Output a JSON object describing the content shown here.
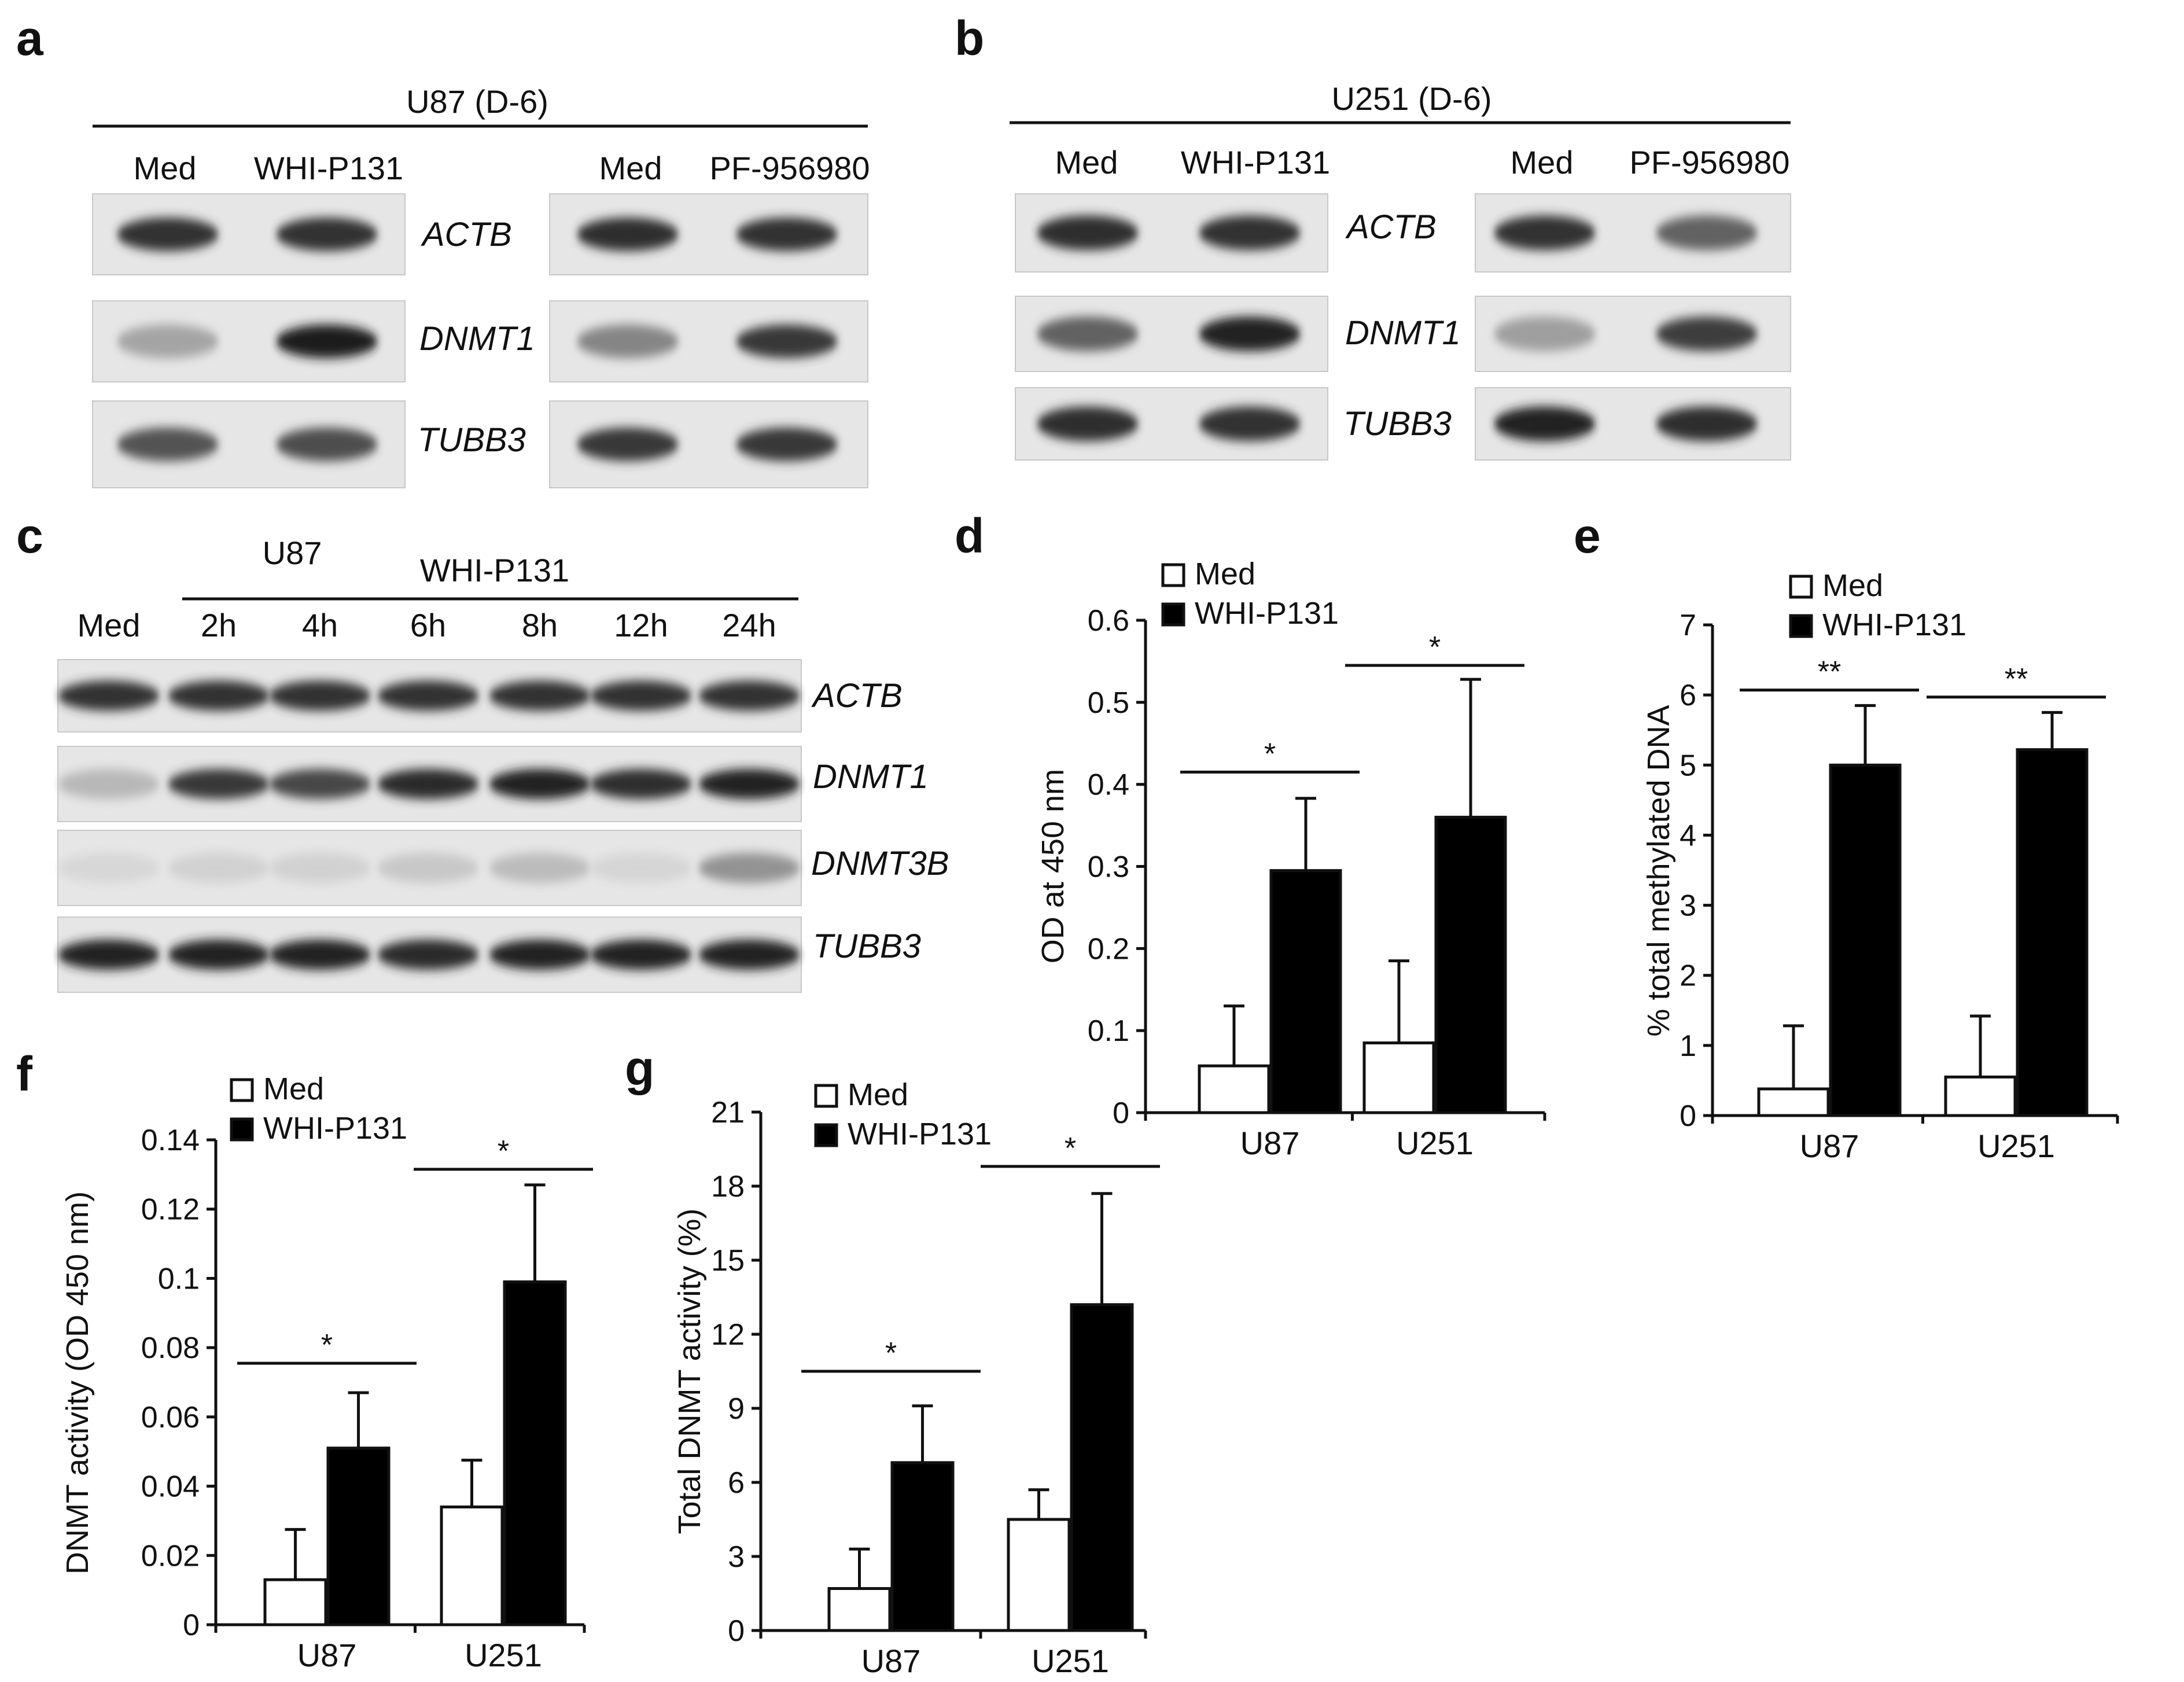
{
  "panel_a": {
    "letter": "a",
    "header": "U87 (D-6)",
    "left_lanes": [
      "Med",
      "WHI-P131"
    ],
    "right_lanes": [
      "Med",
      "PF-956980"
    ],
    "genes": [
      "ACTB",
      "DNMT1",
      "TUBB3"
    ],
    "band_intensity_left": [
      [
        0.85,
        0.85
      ],
      [
        0.3,
        0.95
      ],
      [
        0.7,
        0.72
      ]
    ],
    "band_intensity_right": [
      [
        0.88,
        0.85
      ],
      [
        0.45,
        0.82
      ],
      [
        0.82,
        0.82
      ]
    ]
  },
  "panel_b": {
    "letter": "b",
    "header": "U251 (D-6)",
    "left_lanes": [
      "Med",
      "WHI-P131"
    ],
    "right_lanes": [
      "Med",
      "PF-956980"
    ],
    "genes": [
      "ACTB",
      "DNMT1",
      "TUBB3"
    ],
    "band_intensity_left": [
      [
        0.88,
        0.85
      ],
      [
        0.62,
        0.92
      ],
      [
        0.88,
        0.85
      ]
    ],
    "band_intensity_right": [
      [
        0.85,
        0.62
      ],
      [
        0.32,
        0.8
      ],
      [
        0.92,
        0.88
      ]
    ]
  },
  "panel_c": {
    "letter": "c",
    "cell_line": "U87",
    "treatment": "WHI-P131",
    "lanes": [
      "Med",
      "2h",
      "4h",
      "6h",
      "8h",
      "12h",
      "24h"
    ],
    "genes": [
      "ACTB",
      "DNMT1",
      "DNMT3B",
      "TUBB3"
    ],
    "band_intensity": [
      [
        0.85,
        0.85,
        0.85,
        0.85,
        0.85,
        0.85,
        0.85
      ],
      [
        0.2,
        0.82,
        0.75,
        0.9,
        0.92,
        0.88,
        0.92
      ],
      [
        0.05,
        0.08,
        0.08,
        0.12,
        0.18,
        0.06,
        0.38
      ],
      [
        0.92,
        0.92,
        0.92,
        0.9,
        0.92,
        0.92,
        0.92
      ]
    ]
  },
  "colors": {
    "med_bar": "#ffffff",
    "treated_bar": "#000000",
    "axis": "#111111"
  },
  "chart_data": [
    {
      "panel": "d",
      "letter": "d",
      "type": "bar",
      "ylabel": "OD at 450 nm",
      "categories": [
        "U87",
        "U251"
      ],
      "ylim": [
        0,
        0.6
      ],
      "yticks": [
        "0",
        "0.1",
        "0.2",
        "0.3",
        "0.4",
        "0.5",
        "0.6"
      ],
      "ytick_values": [
        0,
        0.1,
        0.2,
        0.3,
        0.4,
        0.5,
        0.6
      ],
      "series": [
        {
          "name": "Med",
          "values": [
            0.057,
            0.085
          ],
          "errors": [
            0.073,
            0.1
          ]
        },
        {
          "name": "WHI-P131",
          "values": [
            0.295,
            0.36
          ],
          "errors": [
            0.088,
            0.168
          ]
        }
      ],
      "significance": [
        "*",
        "*"
      ],
      "significance_y": [
        0.415,
        0.545
      ]
    },
    {
      "panel": "e",
      "letter": "e",
      "type": "bar",
      "ylabel": "% total methylated DNA",
      "categories": [
        "U87",
        "U251"
      ],
      "ylim": [
        0,
        7
      ],
      "yticks": [
        "0",
        "1",
        "2",
        "3",
        "4",
        "5",
        "6",
        "7"
      ],
      "ytick_values": [
        0,
        1,
        2,
        3,
        4,
        5,
        6,
        7
      ],
      "series": [
        {
          "name": "Med",
          "values": [
            0.38,
            0.55
          ],
          "errors": [
            0.9,
            0.87
          ]
        },
        {
          "name": "WHI-P131",
          "values": [
            5.0,
            5.22
          ],
          "errors": [
            0.85,
            0.53
          ]
        }
      ],
      "significance": [
        "**",
        "**"
      ],
      "significance_y": [
        6.07,
        5.97
      ]
    },
    {
      "panel": "f",
      "letter": "f",
      "type": "bar",
      "ylabel": "DNMT activity (OD 450 nm)",
      "categories": [
        "U87",
        "U251"
      ],
      "ylim": [
        0,
        0.14
      ],
      "yticks": [
        "0",
        "0.02",
        "0.04",
        "0.06",
        "0.08",
        "0.1",
        "0.12",
        "0.14"
      ],
      "ytick_values": [
        0,
        0.02,
        0.04,
        0.06,
        0.08,
        0.1,
        0.12,
        0.14
      ],
      "series": [
        {
          "name": "Med",
          "values": [
            0.013,
            0.034
          ],
          "errors": [
            0.0145,
            0.0135
          ]
        },
        {
          "name": "WHI-P131",
          "values": [
            0.051,
            0.099
          ],
          "errors": [
            0.016,
            0.028
          ]
        }
      ],
      "significance": [
        "*",
        "*"
      ],
      "significance_y": [
        0.0755,
        0.1315
      ]
    },
    {
      "panel": "g",
      "letter": "g",
      "type": "bar",
      "ylabel": "Total DNMT activity (%)",
      "categories": [
        "U87",
        "U251"
      ],
      "ylim": [
        0,
        21
      ],
      "yticks": [
        "0",
        "3",
        "6",
        "9",
        "12",
        "15",
        "18",
        "21"
      ],
      "ytick_values": [
        0,
        3,
        6,
        9,
        12,
        15,
        18,
        21
      ],
      "series": [
        {
          "name": "Med",
          "values": [
            1.7,
            4.5
          ],
          "errors": [
            1.6,
            1.2
          ]
        },
        {
          "name": "WHI-P131",
          "values": [
            6.8,
            13.2
          ],
          "errors": [
            2.3,
            4.5
          ]
        }
      ],
      "significance": [
        "*",
        "*"
      ],
      "significance_y": [
        10.5,
        18.8
      ]
    }
  ]
}
